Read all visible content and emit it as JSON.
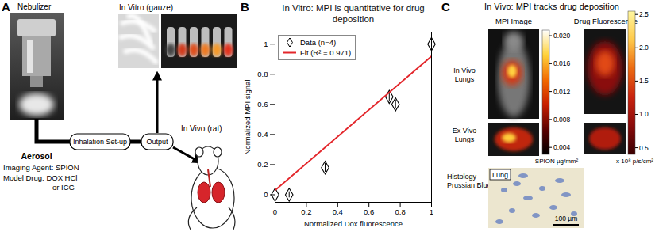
{
  "chart_data": {
    "type": "scatter",
    "title": "In Vitro: MPI is quantitative for drug deposition",
    "x_label": "Normalized Dox fluorescence",
    "y_label": "Normalized MPI signal",
    "xlim": [
      0,
      1
    ],
    "ylim": [
      -0.05,
      1.08
    ],
    "xticks": [
      0,
      0.2,
      0.4,
      0.6,
      0.8,
      1
    ],
    "yticks": [
      0,
      0.2,
      0.4,
      0.6,
      0.8,
      1
    ],
    "legend": "upper left",
    "series": [
      {
        "name": "Data (n=4)",
        "type": "scatter",
        "marker": "diamond",
        "color": "#000000",
        "x": [
          0,
          0.09,
          0.32,
          0.73,
          0.77,
          1
        ],
        "values": [
          0,
          0,
          0.18,
          0.65,
          0.6,
          1
        ],
        "errors": [
          0.02,
          0.02,
          0.03,
          0.03,
          0.03,
          0.03
        ]
      },
      {
        "name": "Fit (R² = 0.971)",
        "type": "line",
        "line_style": "solid",
        "color": "#e3262b",
        "x": [
          0,
          1
        ],
        "values": [
          0.03,
          0.92
        ]
      }
    ]
  },
  "figure": {
    "panel_letters": [
      "A",
      "B",
      "C"
    ],
    "panel_a": {
      "nebulizer": "Nebulizer",
      "in_vitro": "In Vitro (gauze)",
      "setup": "Inhalation Set-up",
      "output": "Output",
      "in_vivo": "In Vivo (rat)",
      "aerosol": "Aerosol",
      "agent": "Imaging Agent: SPION",
      "drug_lines": [
        "Model Drug: DOX HCl",
        "or ICG"
      ]
    },
    "panel_c": {
      "title": "In Vivo: MPI tracks drug deposition",
      "columns": [
        "MPI Image",
        "Drug Fluorescence"
      ],
      "rows": [
        [
          "In Vivo",
          "Lungs"
        ],
        [
          "Ex Vivo",
          "Lungs"
        ],
        [
          "Histology",
          "Prussian Blue"
        ]
      ],
      "histology_tag": "Lung",
      "scale_bar": "100 µm",
      "colorbars": [
        {
          "label": "SPION µg/mm²",
          "range": [
            0.003,
            0.0208
          ],
          "ticks": [
            0.004,
            0.008,
            0.012,
            0.016,
            {
              "value": 0.02,
              "label": "0.020"
            }
          ]
        },
        {
          "label": "x 10⁸ p/s/cm²",
          "range": [
            0.4,
            2.55
          ],
          "ticks": [
            0.5,
            {
              "value": 1,
              "label": "1.0"
            },
            1.5,
            {
              "value": 2,
              "label": "2.0"
            },
            2.5
          ]
        }
      ]
    }
  }
}
